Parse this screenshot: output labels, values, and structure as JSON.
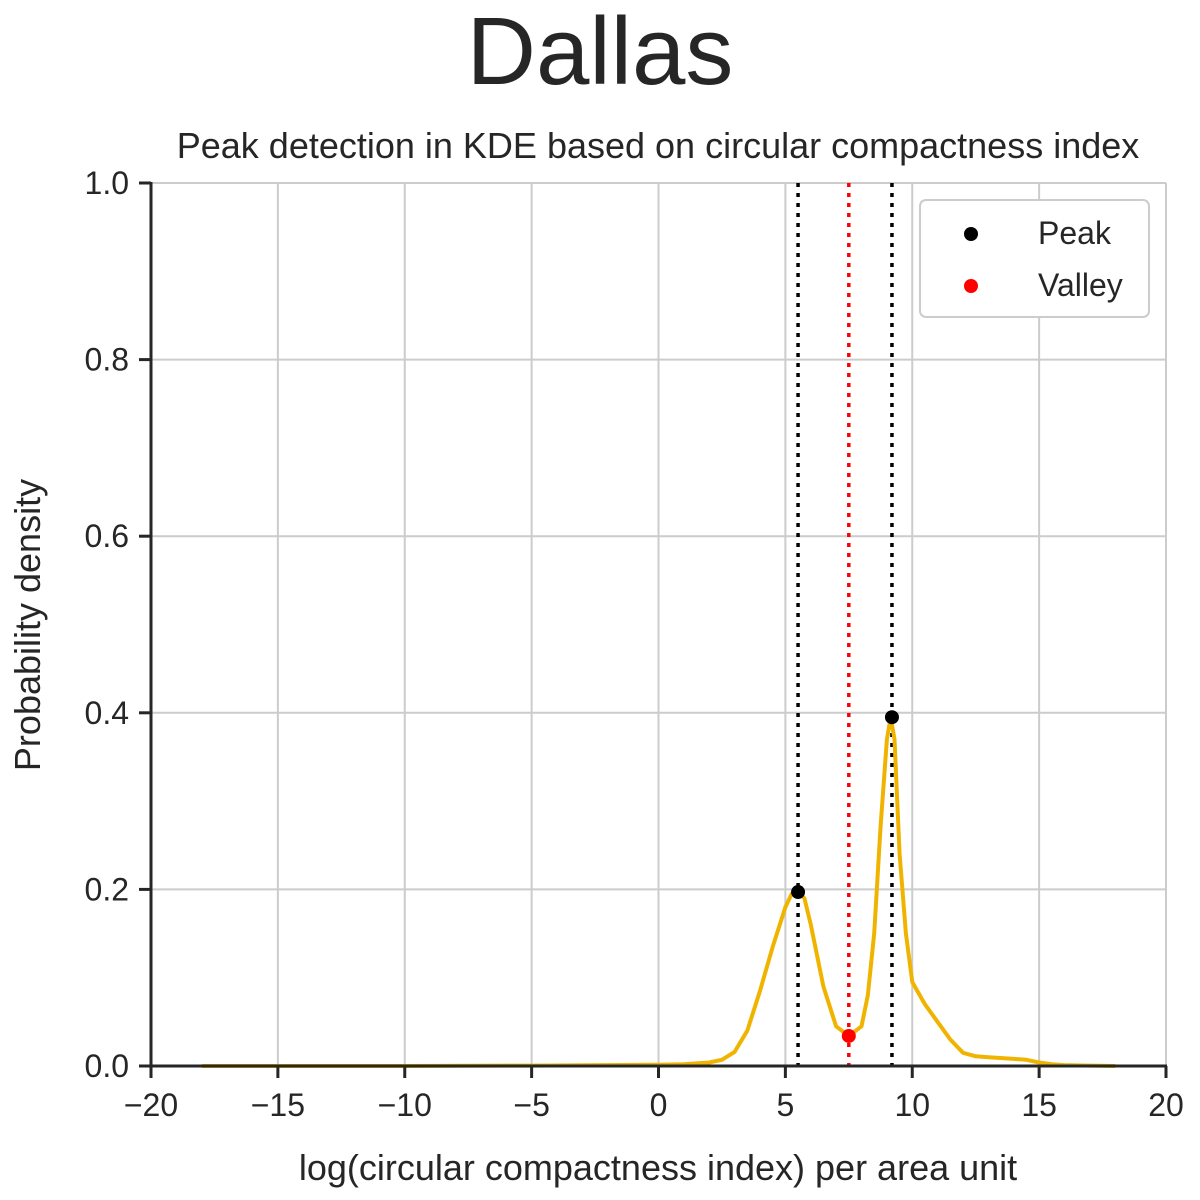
{
  "suptitle": "Dallas",
  "chart_data": {
    "type": "line",
    "title": "Peak detection in KDE based on circular compactness index",
    "xlabel": "log(circular compactness index) per area unit",
    "ylabel": "Probability density",
    "xlim": [
      -20,
      20
    ],
    "ylim": [
      0,
      1
    ],
    "xticks": [
      -20,
      -15,
      -10,
      -5,
      0,
      5,
      10,
      15,
      20
    ],
    "xtick_labels": [
      "−20",
      "−15",
      "−10",
      "−5",
      "0",
      "5",
      "10",
      "15",
      "20"
    ],
    "yticks": [
      0,
      0.2,
      0.4,
      0.6,
      0.8,
      1.0
    ],
    "ytick_labels": [
      "0.0",
      "0.2",
      "0.4",
      "0.6",
      "0.8",
      "1.0"
    ],
    "grid": true,
    "legend_position": "top-right",
    "colors": {
      "kde": "#f0b400",
      "peak": "#000000",
      "valley": "#ff0000",
      "grid": "#cccccc",
      "axis": "#262626"
    },
    "kde_curve": {
      "x": [
        -18,
        -10,
        -5,
        0,
        1,
        2,
        2.5,
        3,
        3.5,
        4,
        4.5,
        5,
        5.25,
        5.5,
        5.75,
        6,
        6.5,
        7,
        7.5,
        8,
        8.25,
        8.5,
        8.75,
        9,
        9.15,
        9.3,
        9.5,
        9.75,
        10,
        10.5,
        11,
        11.5,
        12,
        12.5,
        13,
        14,
        14.5,
        15,
        15.5,
        16,
        17,
        18
      ],
      "y": [
        0.0,
        0.0,
        0.0005,
        0.0015,
        0.002,
        0.004,
        0.007,
        0.016,
        0.04,
        0.085,
        0.135,
        0.18,
        0.195,
        0.197,
        0.19,
        0.16,
        0.09,
        0.045,
        0.034,
        0.045,
        0.08,
        0.15,
        0.27,
        0.37,
        0.395,
        0.37,
        0.24,
        0.15,
        0.095,
        0.07,
        0.05,
        0.03,
        0.015,
        0.011,
        0.01,
        0.008,
        0.007,
        0.004,
        0.002,
        0.001,
        0.0005,
        0.0
      ]
    },
    "peaks": {
      "name": "Peak",
      "x": [
        5.5,
        9.2
      ],
      "y": [
        0.197,
        0.395
      ]
    },
    "valleys": {
      "name": "Valley",
      "x": [
        7.5
      ],
      "y": [
        0.034
      ]
    },
    "vlines": [
      {
        "x": 5.5,
        "color": "#000000",
        "style": "dotted"
      },
      {
        "x": 7.5,
        "color": "#ff0000",
        "style": "dotted"
      },
      {
        "x": 9.2,
        "color": "#000000",
        "style": "dotted"
      }
    ]
  }
}
